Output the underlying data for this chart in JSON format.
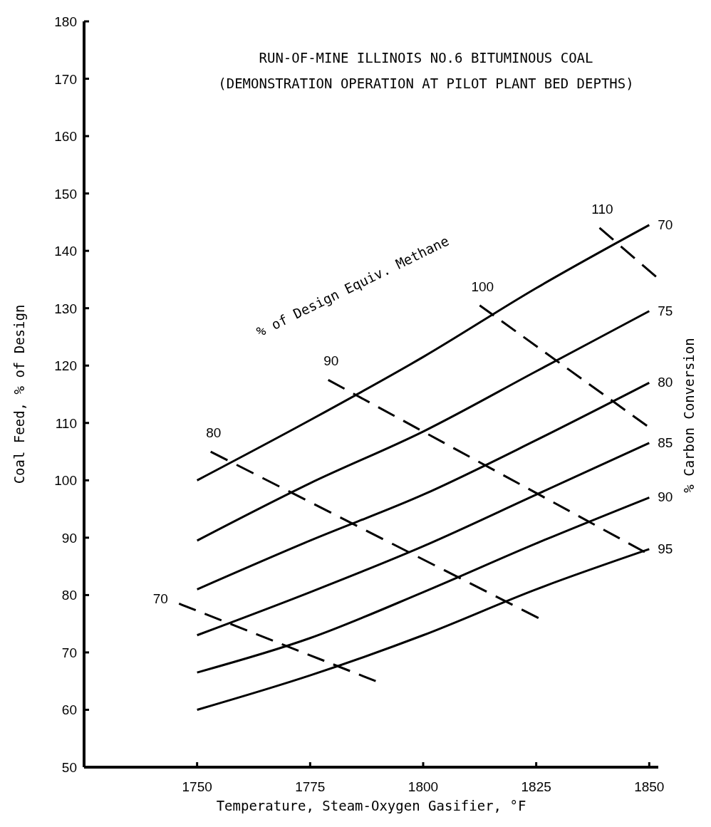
{
  "chart_data": {
    "type": "line",
    "title": "RUN-OF-MINE ILLINOIS NO.6 BITUMINOUS COAL",
    "subtitle": "(DEMONSTRATION OPERATION AT PILOT PLANT BED DEPTHS)",
    "xlabel": "Temperature, Steam-Oxygen Gasifier, °F",
    "ylabel": "Coal Feed, % of Design",
    "annotations": [
      "% of Design Equiv. Methane",
      "% Carbon Conversion"
    ],
    "xlim": [
      1725,
      1852
    ],
    "xticks": [
      1750,
      1775,
      1800,
      1825,
      1850
    ],
    "ylim": [
      50,
      180
    ],
    "yticks": [
      50,
      60,
      70,
      80,
      90,
      100,
      110,
      120,
      130,
      140,
      150,
      160,
      170,
      180
    ],
    "grid": false,
    "series": [
      {
        "name": "70",
        "color": "#000000",
        "line_style": "solid",
        "x": [
          1750,
          1775,
          1800,
          1825,
          1850
        ],
        "values": [
          100,
          110.5,
          121.5,
          133.5,
          144.5
        ]
      },
      {
        "name": "75",
        "color": "#000000",
        "line_style": "solid",
        "x": [
          1750,
          1775,
          1800,
          1825,
          1850
        ],
        "values": [
          89.5,
          99.5,
          108.5,
          119,
          129.5
        ]
      },
      {
        "name": "80",
        "color": "#000000",
        "line_style": "solid",
        "x": [
          1750,
          1775,
          1800,
          1825,
          1850
        ],
        "values": [
          81,
          89.5,
          97.5,
          107,
          117
        ]
      },
      {
        "name": "85",
        "color": "#000000",
        "line_style": "solid",
        "x": [
          1750,
          1775,
          1800,
          1825,
          1850
        ],
        "values": [
          73,
          80.5,
          88.5,
          97.5,
          106.5
        ]
      },
      {
        "name": "90",
        "color": "#000000",
        "line_style": "solid",
        "x": [
          1750,
          1775,
          1800,
          1825,
          1850
        ],
        "values": [
          66.5,
          72.5,
          80.5,
          89,
          97
        ]
      },
      {
        "name": "95",
        "color": "#000000",
        "line_style": "solid",
        "x": [
          1750,
          1775,
          1800,
          1825,
          1850
        ],
        "values": [
          60,
          66,
          73,
          81,
          88
        ]
      },
      {
        "name": "70",
        "color": "#000000",
        "line_style": "dashed",
        "x": [
          1746,
          1789.5
        ],
        "values": [
          78.5,
          65
        ]
      },
      {
        "name": "80",
        "color": "#000000",
        "line_style": "dashed",
        "x": [
          1753,
          1825.5
        ],
        "values": [
          105,
          76
        ]
      },
      {
        "name": "90",
        "color": "#000000",
        "line_style": "dashed",
        "x": [
          1779,
          1849
        ],
        "values": [
          117.5,
          87.5
        ]
      },
      {
        "name": "100",
        "color": "#000000",
        "line_style": "dashed",
        "x": [
          1812.5,
          1849.5
        ],
        "values": [
          130.5,
          109.5
        ]
      },
      {
        "name": "110",
        "color": "#000000",
        "line_style": "dashed",
        "x": [
          1839,
          1851.5
        ],
        "values": [
          144,
          135.5
        ]
      }
    ]
  }
}
